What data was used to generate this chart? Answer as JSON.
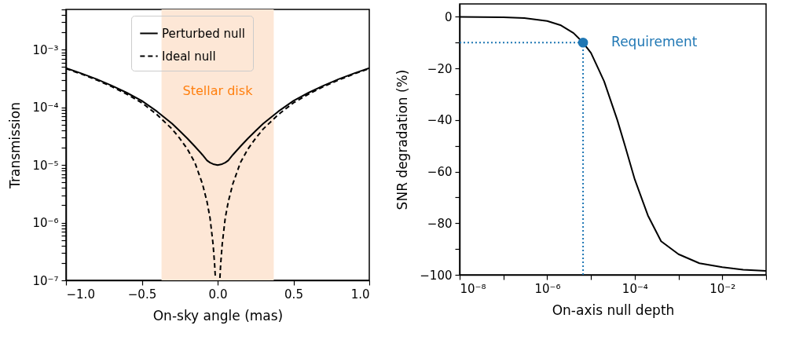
{
  "chart_data": [
    {
      "type": "line",
      "xlabel": "On-sky angle (mas)",
      "ylabel": "Transmission",
      "log": "y",
      "legend": "top",
      "xlim": [
        -1,
        1
      ],
      "ylim": [
        1e-07,
        0.005
      ],
      "xticks": [
        {
          "value": -1,
          "label": "−1.0"
        },
        {
          "value": -0.5,
          "label": "−0.5"
        },
        {
          "value": 0,
          "label": "0.0"
        },
        {
          "value": 0.5,
          "label": "0.5"
        },
        {
          "value": 1,
          "label": "1.0"
        }
      ],
      "yticks": [
        {
          "value": 1e-07,
          "label": "10⁻⁷"
        },
        {
          "value": 2e-07,
          "label": null
        },
        {
          "value": 3e-07,
          "label": null
        },
        {
          "value": 4e-07,
          "label": null
        },
        {
          "value": 5e-07,
          "label": null
        },
        {
          "value": 6e-07,
          "label": null
        },
        {
          "value": 7e-07,
          "label": null
        },
        {
          "value": 8e-07,
          "label": null
        },
        {
          "value": 9e-07,
          "label": null
        },
        {
          "value": 1e-06,
          "label": "10⁻⁶"
        },
        {
          "value": 2e-06,
          "label": null
        },
        {
          "value": 3e-06,
          "label": null
        },
        {
          "value": 4e-06,
          "label": null
        },
        {
          "value": 5e-06,
          "label": null
        },
        {
          "value": 6e-06,
          "label": null
        },
        {
          "value": 7e-06,
          "label": null
        },
        {
          "value": 8e-06,
          "label": null
        },
        {
          "value": 9e-06,
          "label": null
        },
        {
          "value": 1e-05,
          "label": "10⁻⁵"
        },
        {
          "value": 2e-05,
          "label": null
        },
        {
          "value": 3e-05,
          "label": null
        },
        {
          "value": 4e-05,
          "label": null
        },
        {
          "value": 5e-05,
          "label": null
        },
        {
          "value": 6e-05,
          "label": null
        },
        {
          "value": 7e-05,
          "label": null
        },
        {
          "value": 8e-05,
          "label": null
        },
        {
          "value": 9e-05,
          "label": null
        },
        {
          "value": 0.0001,
          "label": "10⁻⁴"
        },
        {
          "value": 0.0002,
          "label": null
        },
        {
          "value": 0.0003,
          "label": null
        },
        {
          "value": 0.0004,
          "label": null
        },
        {
          "value": 0.0005,
          "label": null
        },
        {
          "value": 0.0006,
          "label": null
        },
        {
          "value": 0.0007,
          "label": null
        },
        {
          "value": 0.0008,
          "label": null
        },
        {
          "value": 0.0009,
          "label": null
        },
        {
          "value": 0.001,
          "label": "10⁻³"
        },
        {
          "value": 0.002,
          "label": null
        },
        {
          "value": 0.003,
          "label": null
        },
        {
          "value": 0.004,
          "label": null
        },
        {
          "value": 0.005,
          "label": null
        }
      ],
      "bands": [
        {
          "axis": "x",
          "from": -0.37,
          "to": 0.37,
          "label": "Stellar disk",
          "color": "#fde7d6"
        }
      ],
      "series": [
        {
          "name": "Perturbed null",
          "color": "#000000",
          "line_style": "solid",
          "x": [
            -1,
            -0.9,
            -0.8,
            -0.7,
            -0.6,
            -0.5,
            -0.4,
            -0.3,
            -0.25,
            -0.2,
            -0.15,
            -0.1,
            -0.07,
            -0.05,
            -0.03,
            0,
            0.03,
            0.05,
            0.07,
            0.1,
            0.15,
            0.2,
            0.25,
            0.3,
            0.4,
            0.5,
            0.6,
            0.7,
            0.8,
            0.9,
            1
          ],
          "values": [
            0.00048,
            0.00039,
            0.00031,
            0.00024,
            0.00018,
            0.00013,
            8.5e-05,
            5.2e-05,
            3.9e-05,
            2.9e-05,
            2.1e-05,
            1.5e-05,
            1.2e-05,
            1.1e-05,
            1.04e-05,
            1e-05,
            1.04e-05,
            1.1e-05,
            1.2e-05,
            1.5e-05,
            2.1e-05,
            2.9e-05,
            3.9e-05,
            5.2e-05,
            8.5e-05,
            0.00013,
            0.00018,
            0.00024,
            0.00031,
            0.00039,
            0.00048
          ]
        },
        {
          "name": "Ideal null",
          "color": "#000000",
          "line_style": "dashed",
          "x": [
            -1,
            -0.9,
            -0.8,
            -0.7,
            -0.6,
            -0.5,
            -0.4,
            -0.3,
            -0.25,
            -0.2,
            -0.15,
            -0.1,
            -0.07,
            -0.05,
            -0.03,
            -0.02,
            -0.015,
            0,
            0.015,
            0.02,
            0.03,
            0.05,
            0.07,
            0.1,
            0.15,
            0.2,
            0.25,
            0.3,
            0.4,
            0.5,
            0.6,
            0.7,
            0.8,
            0.9,
            1
          ],
          "values": [
            0.00047,
            0.00038,
            0.0003,
            0.00023,
            0.00017,
            0.00012,
            7.5e-05,
            4.2e-05,
            2.9e-05,
            1.9e-05,
            1.1e-05,
            4.7e-06,
            2.3e-06,
            1.2e-06,
            4.2e-07,
            1.9e-07,
            1.1e-07,
            null,
            1.1e-07,
            1.9e-07,
            4.2e-07,
            1.2e-06,
            2.3e-06,
            4.7e-06,
            1.1e-05,
            1.9e-05,
            2.9e-05,
            4.2e-05,
            7.5e-05,
            0.00012,
            0.00017,
            0.00023,
            0.0003,
            0.00038,
            0.00047
          ]
        }
      ]
    },
    {
      "type": "line",
      "xlabel": "On-axis null depth",
      "ylabel": "SNR degradation (%)",
      "log": "x",
      "xlim": [
        1e-08,
        0.1
      ],
      "ylim": [
        -100,
        5
      ],
      "xticks": [
        {
          "value": 1e-08,
          "label": "10⁻⁸"
        },
        {
          "value": 1e-07,
          "label": null
        },
        {
          "value": 1e-06,
          "label": "10⁻⁶"
        },
        {
          "value": 1e-05,
          "label": null
        },
        {
          "value": 0.0001,
          "label": "10⁻⁴"
        },
        {
          "value": 0.001,
          "label": null
        },
        {
          "value": 0.01,
          "label": "10⁻²"
        },
        {
          "value": 0.1,
          "label": null
        }
      ],
      "yticks": [
        {
          "value": -100,
          "label": "−100"
        },
        {
          "value": -90,
          "label": null
        },
        {
          "value": -80,
          "label": "−80"
        },
        {
          "value": -70,
          "label": null
        },
        {
          "value": -60,
          "label": "−60"
        },
        {
          "value": -50,
          "label": null
        },
        {
          "value": -40,
          "label": "−40"
        },
        {
          "value": -30,
          "label": null
        },
        {
          "value": -20,
          "label": "−20"
        },
        {
          "value": -10,
          "label": null
        },
        0
      ],
      "ref_lines": [
        {
          "axis": "y",
          "value": -10,
          "color": "#1f77b4",
          "line_style": "dotted"
        },
        {
          "axis": "x",
          "value": 6.6e-06,
          "color": "#1f77b4",
          "line_style": "dotted"
        }
      ],
      "annotations": [
        {
          "text": "Requirement",
          "x": 6.6e-06,
          "y": -10
        }
      ],
      "series": [
        {
          "color": "#000000",
          "x": [
            1e-08,
            1e-07,
            3e-07,
            1e-06,
            2e-06,
            4e-06,
            6.6e-06,
            1e-05,
            2e-05,
            4e-05,
            6e-05,
            0.0001,
            0.0002,
            0.0004,
            0.001,
            0.003,
            0.01,
            0.03,
            0.1
          ],
          "values": [
            0,
            -0.2,
            -0.5,
            -1.6,
            -3.2,
            -6.3,
            -10,
            -14,
            -25,
            -40,
            -50,
            -63,
            -77,
            -87,
            -92,
            -95.5,
            -97,
            -98,
            -98.5
          ]
        },
        {
          "type": "scatter",
          "marker": "circle",
          "color": "#1f77b4",
          "x": [
            6.6e-06
          ],
          "values": [
            -10
          ]
        }
      ]
    }
  ]
}
